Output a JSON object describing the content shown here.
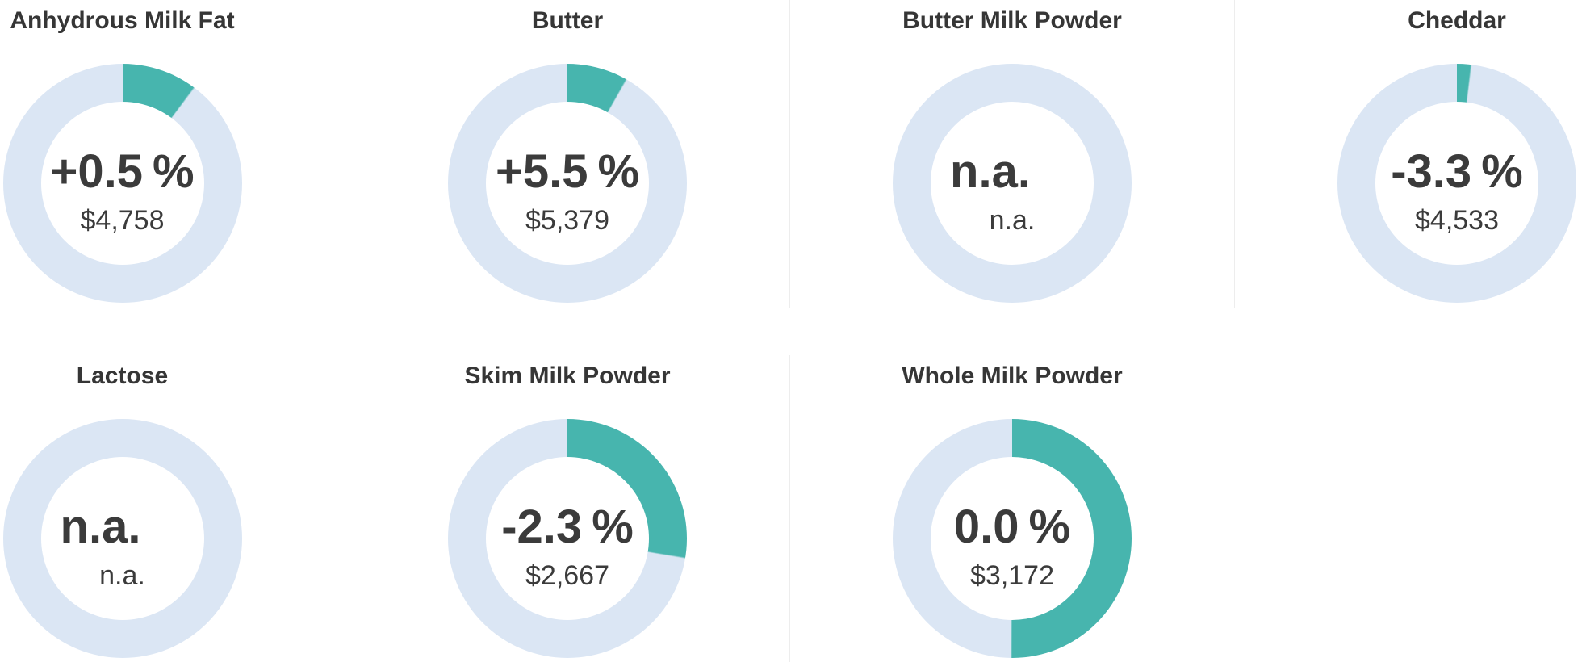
{
  "colors": {
    "background": "#ffffff",
    "arc_fill": "#47b5ae",
    "arc_track": "#dbe6f4",
    "title_text": "#363636",
    "value_text": "#3b3b3b",
    "divider": "#ededed"
  },
  "chart_data": [
    {
      "type": "donut",
      "title": "Anhydrous Milk Fat",
      "change_display": "+0.5",
      "unit": "%",
      "change_pct": 0.5,
      "price_display": "$4,758",
      "price_usd": 4758,
      "fill_fraction": 0.101
    },
    {
      "type": "donut",
      "title": "Butter",
      "change_display": "+5.5",
      "unit": "%",
      "change_pct": 5.5,
      "price_display": "$5,379",
      "price_usd": 5379,
      "fill_fraction": 0.081
    },
    {
      "type": "donut",
      "title": "Butter Milk Powder",
      "change_display": "n.a.",
      "unit": "",
      "change_pct": null,
      "price_display": "n.a.",
      "price_usd": null,
      "fill_fraction": 0
    },
    {
      "type": "donut",
      "title": "Cheddar",
      "change_display": "-3.3",
      "unit": "%",
      "change_pct": -3.3,
      "price_display": "$4,533",
      "price_usd": 4533,
      "fill_fraction": 0.018
    },
    {
      "type": "donut",
      "title": "Lactose",
      "change_display": "n.a.",
      "unit": "",
      "change_pct": null,
      "price_display": "n.a.",
      "price_usd": null,
      "fill_fraction": 0
    },
    {
      "type": "donut",
      "title": "Skim Milk Powder",
      "change_display": "-2.3",
      "unit": "%",
      "change_pct": -2.3,
      "price_display": "$2,667",
      "price_usd": 2667,
      "fill_fraction": 0.275
    },
    {
      "type": "donut",
      "title": "Whole Milk Powder",
      "change_display": "0.0",
      "unit": "%",
      "change_pct": 0.0,
      "price_display": "$3,172",
      "price_usd": 3172,
      "fill_fraction": 0.5
    }
  ]
}
